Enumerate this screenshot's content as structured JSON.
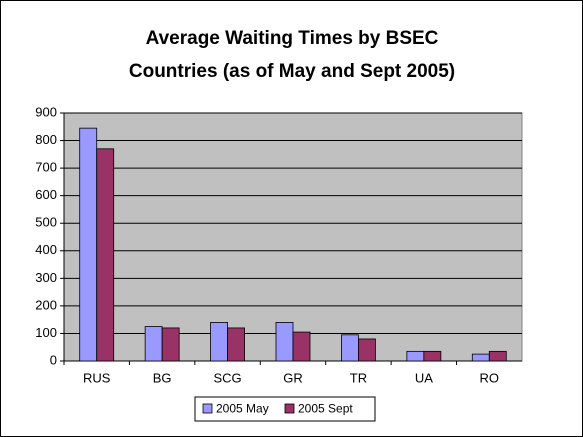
{
  "chart_data": {
    "type": "bar",
    "title": [
      "Average Waiting Times by BSEC",
      "Countries (as of May and Sept 2005)"
    ],
    "categories": [
      "RUS",
      "BG",
      "SCG",
      "GR",
      "TR",
      "UA",
      "RO"
    ],
    "series": [
      {
        "name": "2005 May",
        "color": "#9999ff",
        "values": [
          845,
          125,
          140,
          140,
          95,
          35,
          25
        ]
      },
      {
        "name": "2005 Sept",
        "color": "#993366",
        "values": [
          770,
          120,
          120,
          105,
          80,
          35,
          35
        ]
      }
    ],
    "ylim": [
      0,
      900
    ],
    "yticks": [
      0,
      100,
      200,
      300,
      400,
      500,
      600,
      700,
      800,
      900
    ],
    "grid": true,
    "legend": "bottom"
  }
}
